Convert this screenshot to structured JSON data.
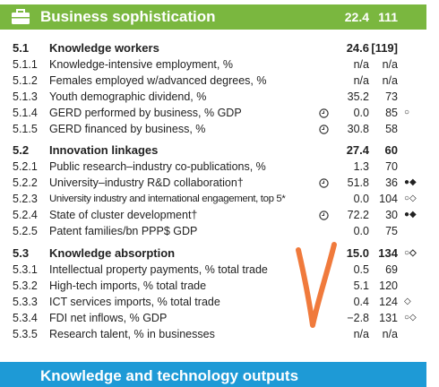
{
  "header": {
    "title": "Business sophistication",
    "score": "22.4",
    "rank": "111"
  },
  "sections": [
    {
      "code": "5.1",
      "title": "Knowledge workers",
      "score": "24.6",
      "rank": "[119]",
      "markers": "",
      "rows": [
        {
          "code": "5.1.1",
          "label": "Knowledge-intensive employment, %",
          "score": "n/a",
          "rank": "n/a",
          "clock": false,
          "markers": ""
        },
        {
          "code": "5.1.2",
          "label": "Females employed w/advanced degrees, %",
          "score": "n/a",
          "rank": "n/a",
          "clock": false,
          "markers": ""
        },
        {
          "code": "5.1.3",
          "label": "Youth demographic dividend, %",
          "score": "35.2",
          "rank": "73",
          "clock": false,
          "markers": ""
        },
        {
          "code": "5.1.4",
          "label": "GERD performed by business, % GDP",
          "score": "0.0",
          "rank": "85",
          "clock": true,
          "markers": "○"
        },
        {
          "code": "5.1.5",
          "label": "GERD financed by business, %",
          "score": "30.8",
          "rank": "58",
          "clock": true,
          "markers": ""
        }
      ]
    },
    {
      "code": "5.2",
      "title": "Innovation linkages",
      "score": "27.4",
      "rank": "60",
      "markers": "",
      "rows": [
        {
          "code": "5.2.1",
          "label": "Public research–industry co-publications, %",
          "score": "1.3",
          "rank": "70",
          "clock": false,
          "markers": ""
        },
        {
          "code": "5.2.2",
          "label": "University–industry R&D collaboration†",
          "score": "51.8",
          "rank": "36",
          "clock": true,
          "markers": "●◆"
        },
        {
          "code": "5.2.3",
          "label": "University industry and international engagement, top 5*",
          "score": "0.0",
          "rank": "104",
          "clock": false,
          "markers": "○◇"
        },
        {
          "code": "5.2.4",
          "label": "State of cluster development†",
          "score": "72.2",
          "rank": "30",
          "clock": true,
          "markers": "●◆"
        },
        {
          "code": "5.2.5",
          "label": "Patent families/bn PPP$ GDP",
          "score": "0.0",
          "rank": "75",
          "clock": false,
          "markers": ""
        }
      ]
    },
    {
      "code": "5.3",
      "title": "Knowledge absorption",
      "score": "15.0",
      "rank": "134",
      "markers": "○◇",
      "rows": [
        {
          "code": "5.3.1",
          "label": "Intellectual property payments, % total trade",
          "score": "0.5",
          "rank": "69",
          "clock": false,
          "markers": ""
        },
        {
          "code": "5.3.2",
          "label": "High-tech imports, % total trade",
          "score": "5.1",
          "rank": "120",
          "clock": false,
          "markers": ""
        },
        {
          "code": "5.3.3",
          "label": "ICT services imports, % total trade",
          "score": "0.4",
          "rank": "124",
          "clock": false,
          "markers": "◇"
        },
        {
          "code": "5.3.4",
          "label": "FDI net inflows, % GDP",
          "score": "−2.8",
          "rank": "131",
          "clock": false,
          "markers": "○◇"
        },
        {
          "code": "5.3.5",
          "label": "Research talent, % in businesses",
          "score": "n/a",
          "rank": "n/a",
          "clock": false,
          "markers": ""
        }
      ]
    }
  ],
  "next": {
    "title": "Knowledge and technology outputs"
  }
}
